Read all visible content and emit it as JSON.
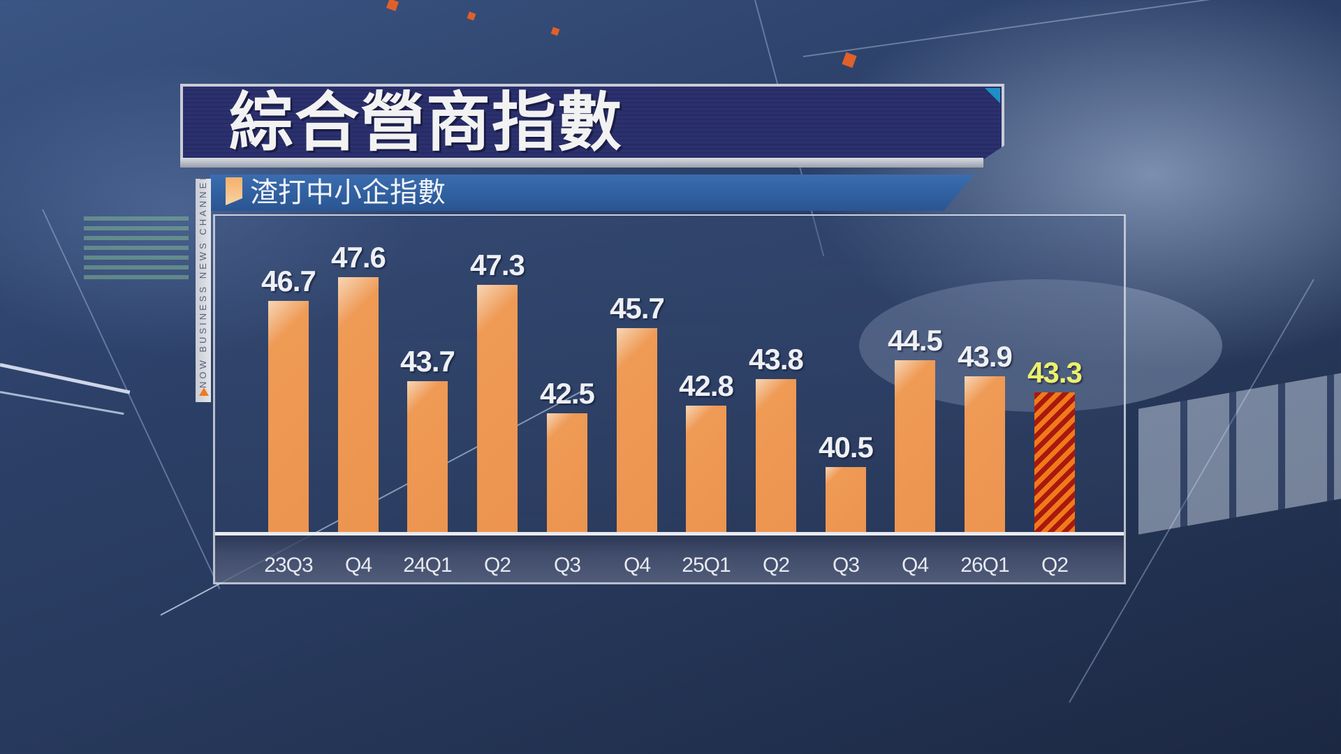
{
  "title": "綜合營商指數",
  "subtitle": "渣打中小企指數",
  "side_label": "NOW BUSINESS NEWS CHANNEL",
  "colors": {
    "title_bg": "#2b306e",
    "subtitle_bg": "#2f5fa0",
    "bar": "#ec9450",
    "hatch_a": "#f07a1a",
    "hatch_b": "#a8180f",
    "highlight_label": "#eef06a",
    "label": "#eef0f4"
  },
  "chart_data": {
    "type": "bar",
    "title": "綜合營商指數",
    "subtitle": "渣打中小企指數",
    "xlabel": "",
    "ylabel": "",
    "categories": [
      "23Q3",
      "Q4",
      "24Q1",
      "Q2",
      "Q3",
      "Q4",
      "25Q1",
      "Q2",
      "Q3",
      "Q4",
      "26Q1",
      "Q2"
    ],
    "values": [
      46.7,
      47.6,
      43.7,
      47.3,
      42.5,
      45.7,
      42.8,
      43.8,
      40.5,
      44.5,
      43.9,
      43.3
    ],
    "value_labels": [
      "46.7",
      "47.6",
      "43.7",
      "47.3",
      "42.5",
      "45.7",
      "42.8",
      "43.8",
      "40.5",
      "44.5",
      "43.9",
      "43.3"
    ],
    "highlighted_index": 11,
    "highlight_style": "hatched orange/red stripes, yellow value label",
    "grid": false,
    "legend": null,
    "y_axis_visible": false
  }
}
